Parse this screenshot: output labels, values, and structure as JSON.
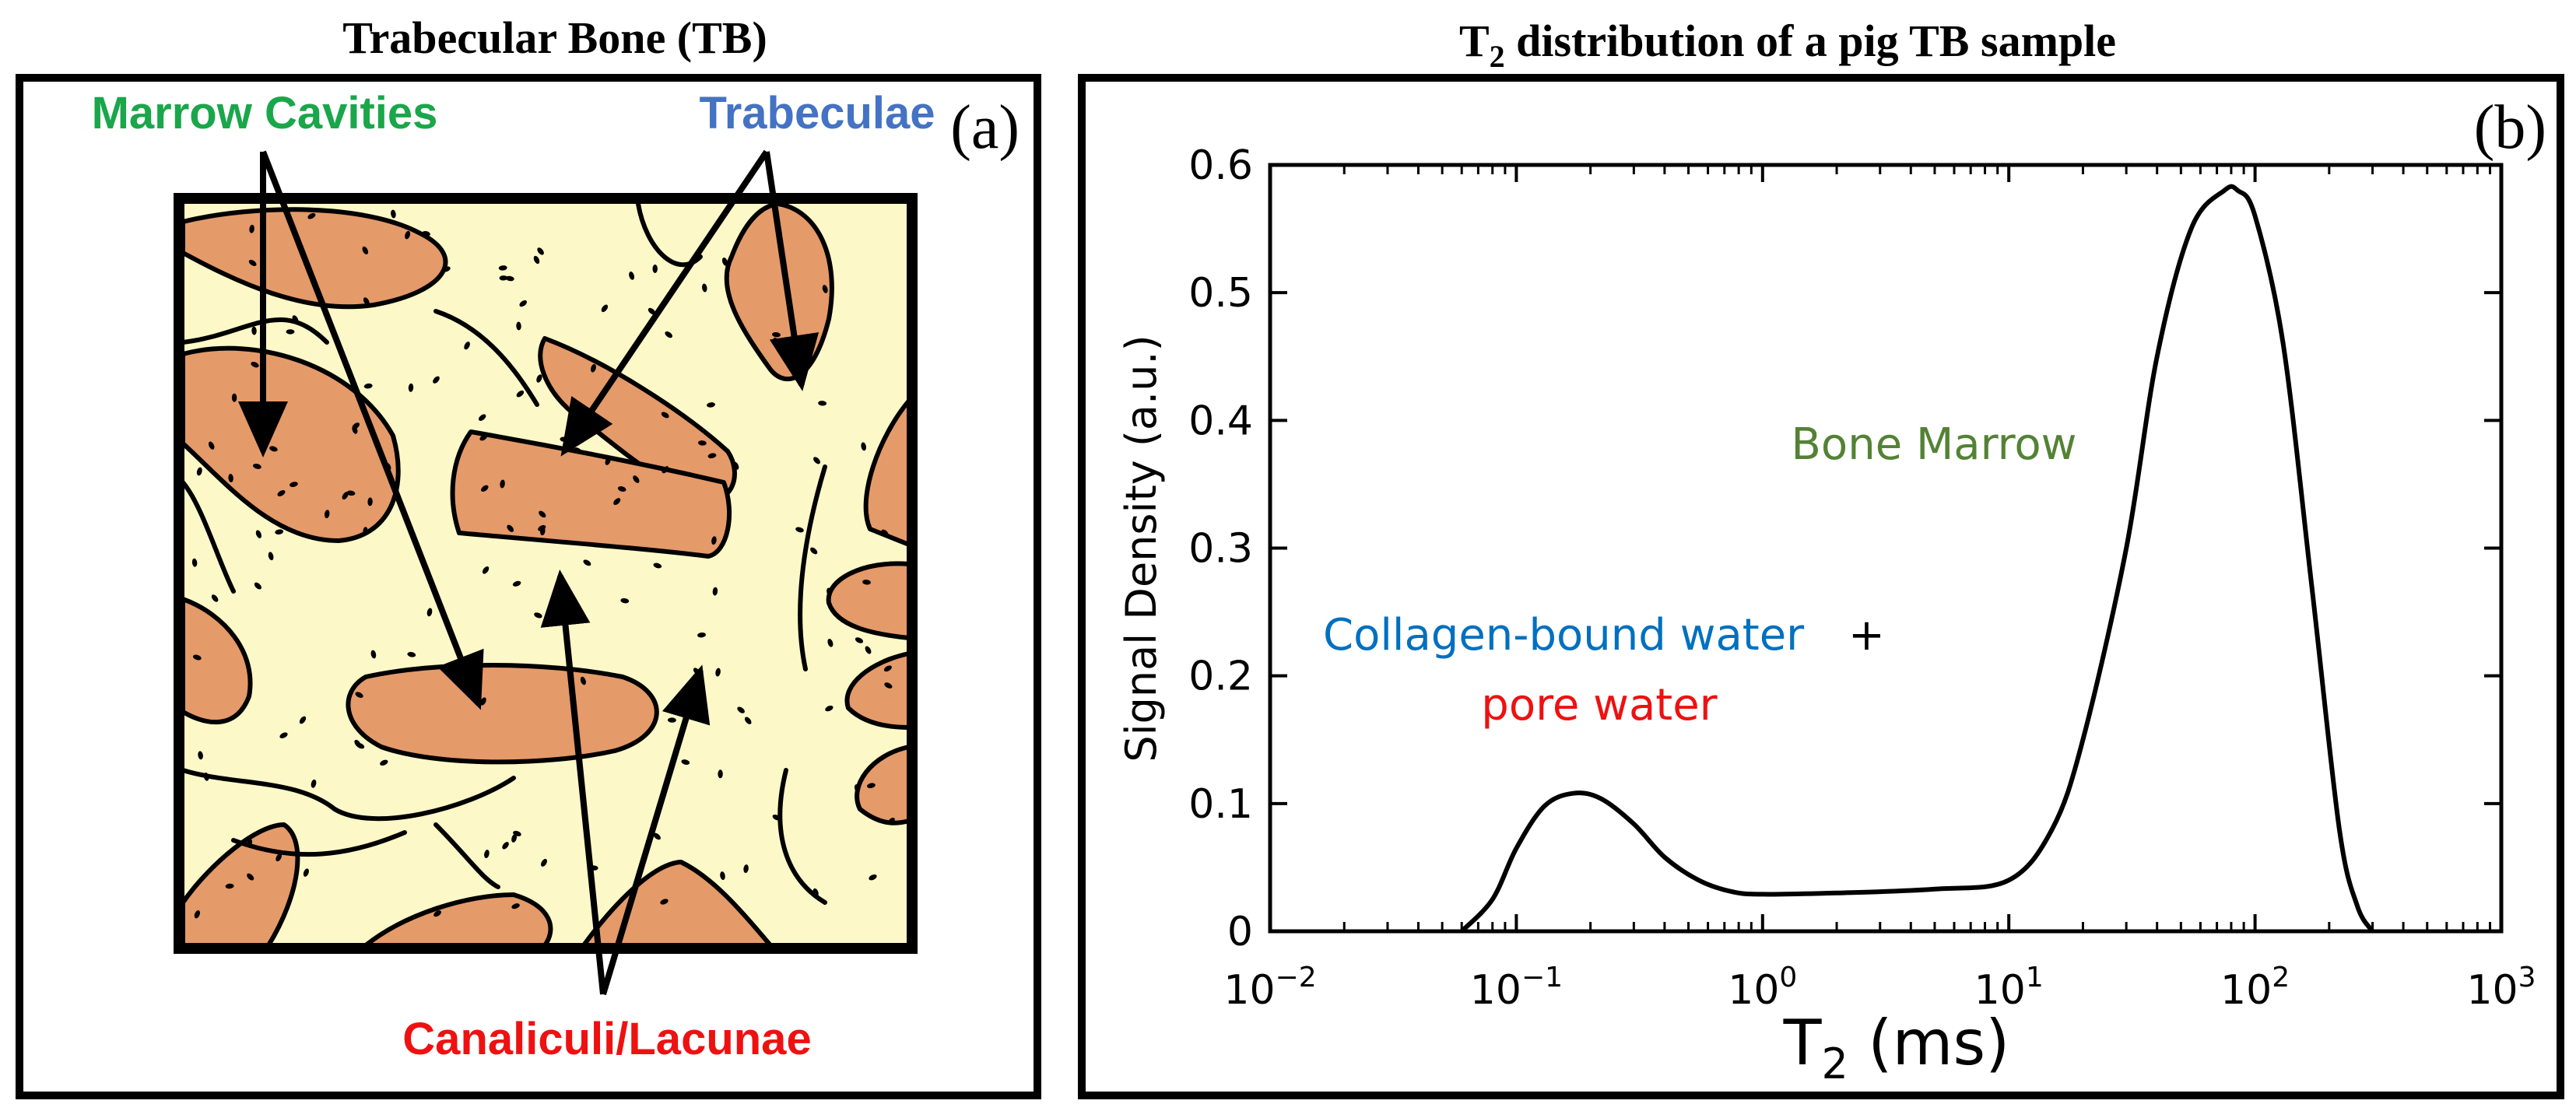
{
  "panel_a": {
    "title": "Trabecular Bone (TB)",
    "tag": "(a)",
    "labels": {
      "marrow": "Marrow Cavities",
      "trabeculae": "Trabeculae",
      "canaliculi": "Canaliculi/Lacunae"
    }
  },
  "panel_b": {
    "title_main": "T",
    "title_sub": "2",
    "title_rest": " distribution of a pig TB sample",
    "tag": "(b)",
    "ylabel": "Signal Density (a.u.)",
    "xlabel_main": "T",
    "xlabel_sub": "2",
    "xlabel_rest": " (ms)",
    "annotations": {
      "bone_marrow": "Bone Marrow",
      "collagen": "Collagen-bound water",
      "plus": "+",
      "pore": "pore water"
    }
  },
  "colors": {
    "marrow_label": "#1aa64a",
    "trabeculae_label": "#4472c4",
    "canaliculi_label": "#ee1111",
    "bone_fill": "#fdf8c8",
    "marrow_fill": "#e59a6a",
    "bone_marrow_text": "#548235",
    "collagen_text": "#0070c0",
    "pore_text": "#ee1111"
  },
  "chart_data": {
    "type": "line",
    "xscale": "log",
    "xlim": [
      0.01,
      1000
    ],
    "ylim": [
      0,
      0.6
    ],
    "x_ticks": [
      {
        "base": "10",
        "exp": "−2"
      },
      {
        "base": "10",
        "exp": "−1"
      },
      {
        "base": "10",
        "exp": "0"
      },
      {
        "base": "10",
        "exp": "1"
      },
      {
        "base": "10",
        "exp": "2"
      },
      {
        "base": "10",
        "exp": "3"
      }
    ],
    "y_ticks": [
      "0",
      "0.1",
      "0.2",
      "0.3",
      "0.4",
      "0.5",
      "0.6"
    ],
    "x": [
      0.06,
      0.08,
      0.1,
      0.13,
      0.17,
      0.22,
      0.3,
      0.4,
      0.55,
      0.75,
      1,
      2,
      5,
      10,
      15,
      20,
      30,
      40,
      55,
      75,
      85,
      100,
      130,
      170,
      220,
      260,
      300
    ],
    "y": [
      0,
      0.025,
      0.065,
      0.098,
      0.108,
      0.104,
      0.084,
      0.058,
      0.04,
      0.031,
      0.029,
      0.03,
      0.033,
      0.04,
      0.08,
      0.15,
      0.3,
      0.45,
      0.55,
      0.58,
      0.58,
      0.56,
      0.46,
      0.27,
      0.08,
      0.02,
      0
    ]
  }
}
